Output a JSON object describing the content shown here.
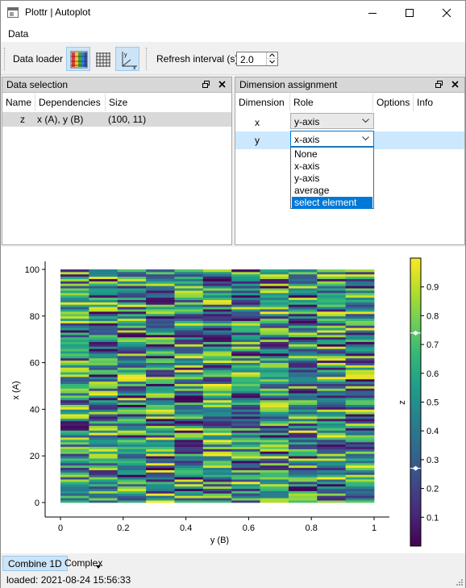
{
  "window": {
    "title": "Plottr | Autoplot"
  },
  "menu": {
    "data": "Data"
  },
  "toolbar": {
    "data_loader_label": "Data loader",
    "refresh_label": "Refresh interval (s)",
    "refresh_value": "2.0",
    "icons": [
      "colormap-plot-icon",
      "grid-plot-icon",
      "xy-axes-icon"
    ]
  },
  "data_selection": {
    "title": "Data selection",
    "columns": [
      "Name",
      "Dependencies",
      "Size"
    ],
    "rows": [
      {
        "name": "z",
        "dependencies": "x (A), y (B)",
        "size": "(100, 11)"
      }
    ]
  },
  "dimension_assignment": {
    "title": "Dimension assignment",
    "columns": [
      "Dimension",
      "Role",
      "Options",
      "Info"
    ],
    "rows": [
      {
        "dimension": "x",
        "role": "y-axis"
      },
      {
        "dimension": "y",
        "role": "x-axis"
      }
    ],
    "dropdown_options": [
      "None",
      "x-axis",
      "y-axis",
      "average",
      "select element"
    ],
    "dropdown_highlighted": "select element"
  },
  "chart_data": {
    "type": "heatmap",
    "xlabel": "y (B)",
    "ylabel": "x (A)",
    "colorbar_label": "z",
    "x_ticks": [
      "0",
      "0.2",
      "0.4",
      "0.6",
      "0.8",
      "1"
    ],
    "y_ticks": [
      "0",
      "20",
      "40",
      "60",
      "80",
      "100"
    ],
    "colorbar_ticks": [
      "0.1",
      "0.2",
      "0.3",
      "0.4",
      "0.5",
      "0.6",
      "0.7",
      "0.8",
      "0.9"
    ],
    "xlim": [
      0,
      1
    ],
    "ylim": [
      0,
      100
    ],
    "zlim": [
      0,
      1
    ],
    "shape": [
      100,
      11
    ],
    "colormap": "viridis",
    "colorbar_markers": [
      0.27,
      0.74
    ]
  },
  "tabs": {
    "combine": "Combine 1D",
    "complex": "Complex"
  },
  "status": {
    "text": "loaded: 2021-08-24 15:56:33"
  },
  "colors": {
    "accent": "#0078d7",
    "highlight": "#cce4f7"
  }
}
